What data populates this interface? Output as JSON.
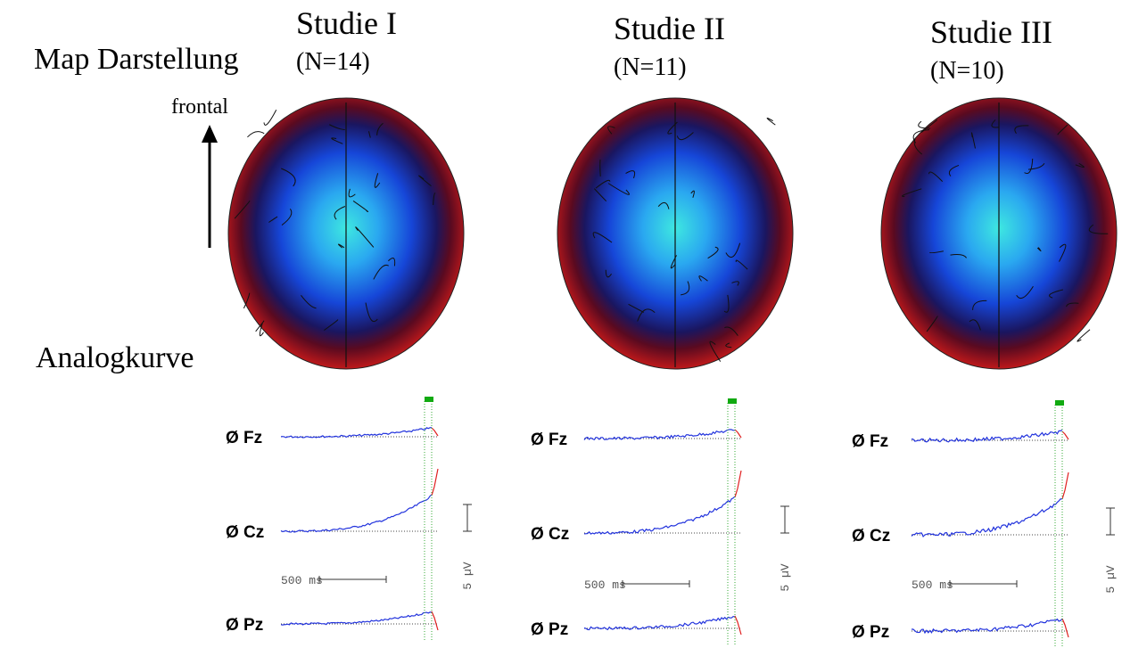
{
  "header": {
    "map_label": "Map Darstellung",
    "direction_label": "frontal",
    "curve_label": "Analogkurve"
  },
  "studies": [
    {
      "title": "Studie I",
      "n": "(N=14)",
      "channels": [
        "Ø Fz",
        "Ø Cz",
        "Ø Pz"
      ],
      "time_scale": "500 ms",
      "amp_scale": "5 µV"
    },
    {
      "title": "Studie II",
      "n": "(N=11)",
      "channels": [
        "Ø Fz",
        "Ø Cz",
        "Ø Pz"
      ],
      "time_scale": "500 ms",
      "amp_scale": "5 µV"
    },
    {
      "title": "Studie III",
      "n": "(N=10)",
      "channels": [
        "Ø Fz",
        "Ø Cz",
        "Ø Pz"
      ],
      "time_scale": "500 ms",
      "amp_scale": "5 µV"
    }
  ]
}
